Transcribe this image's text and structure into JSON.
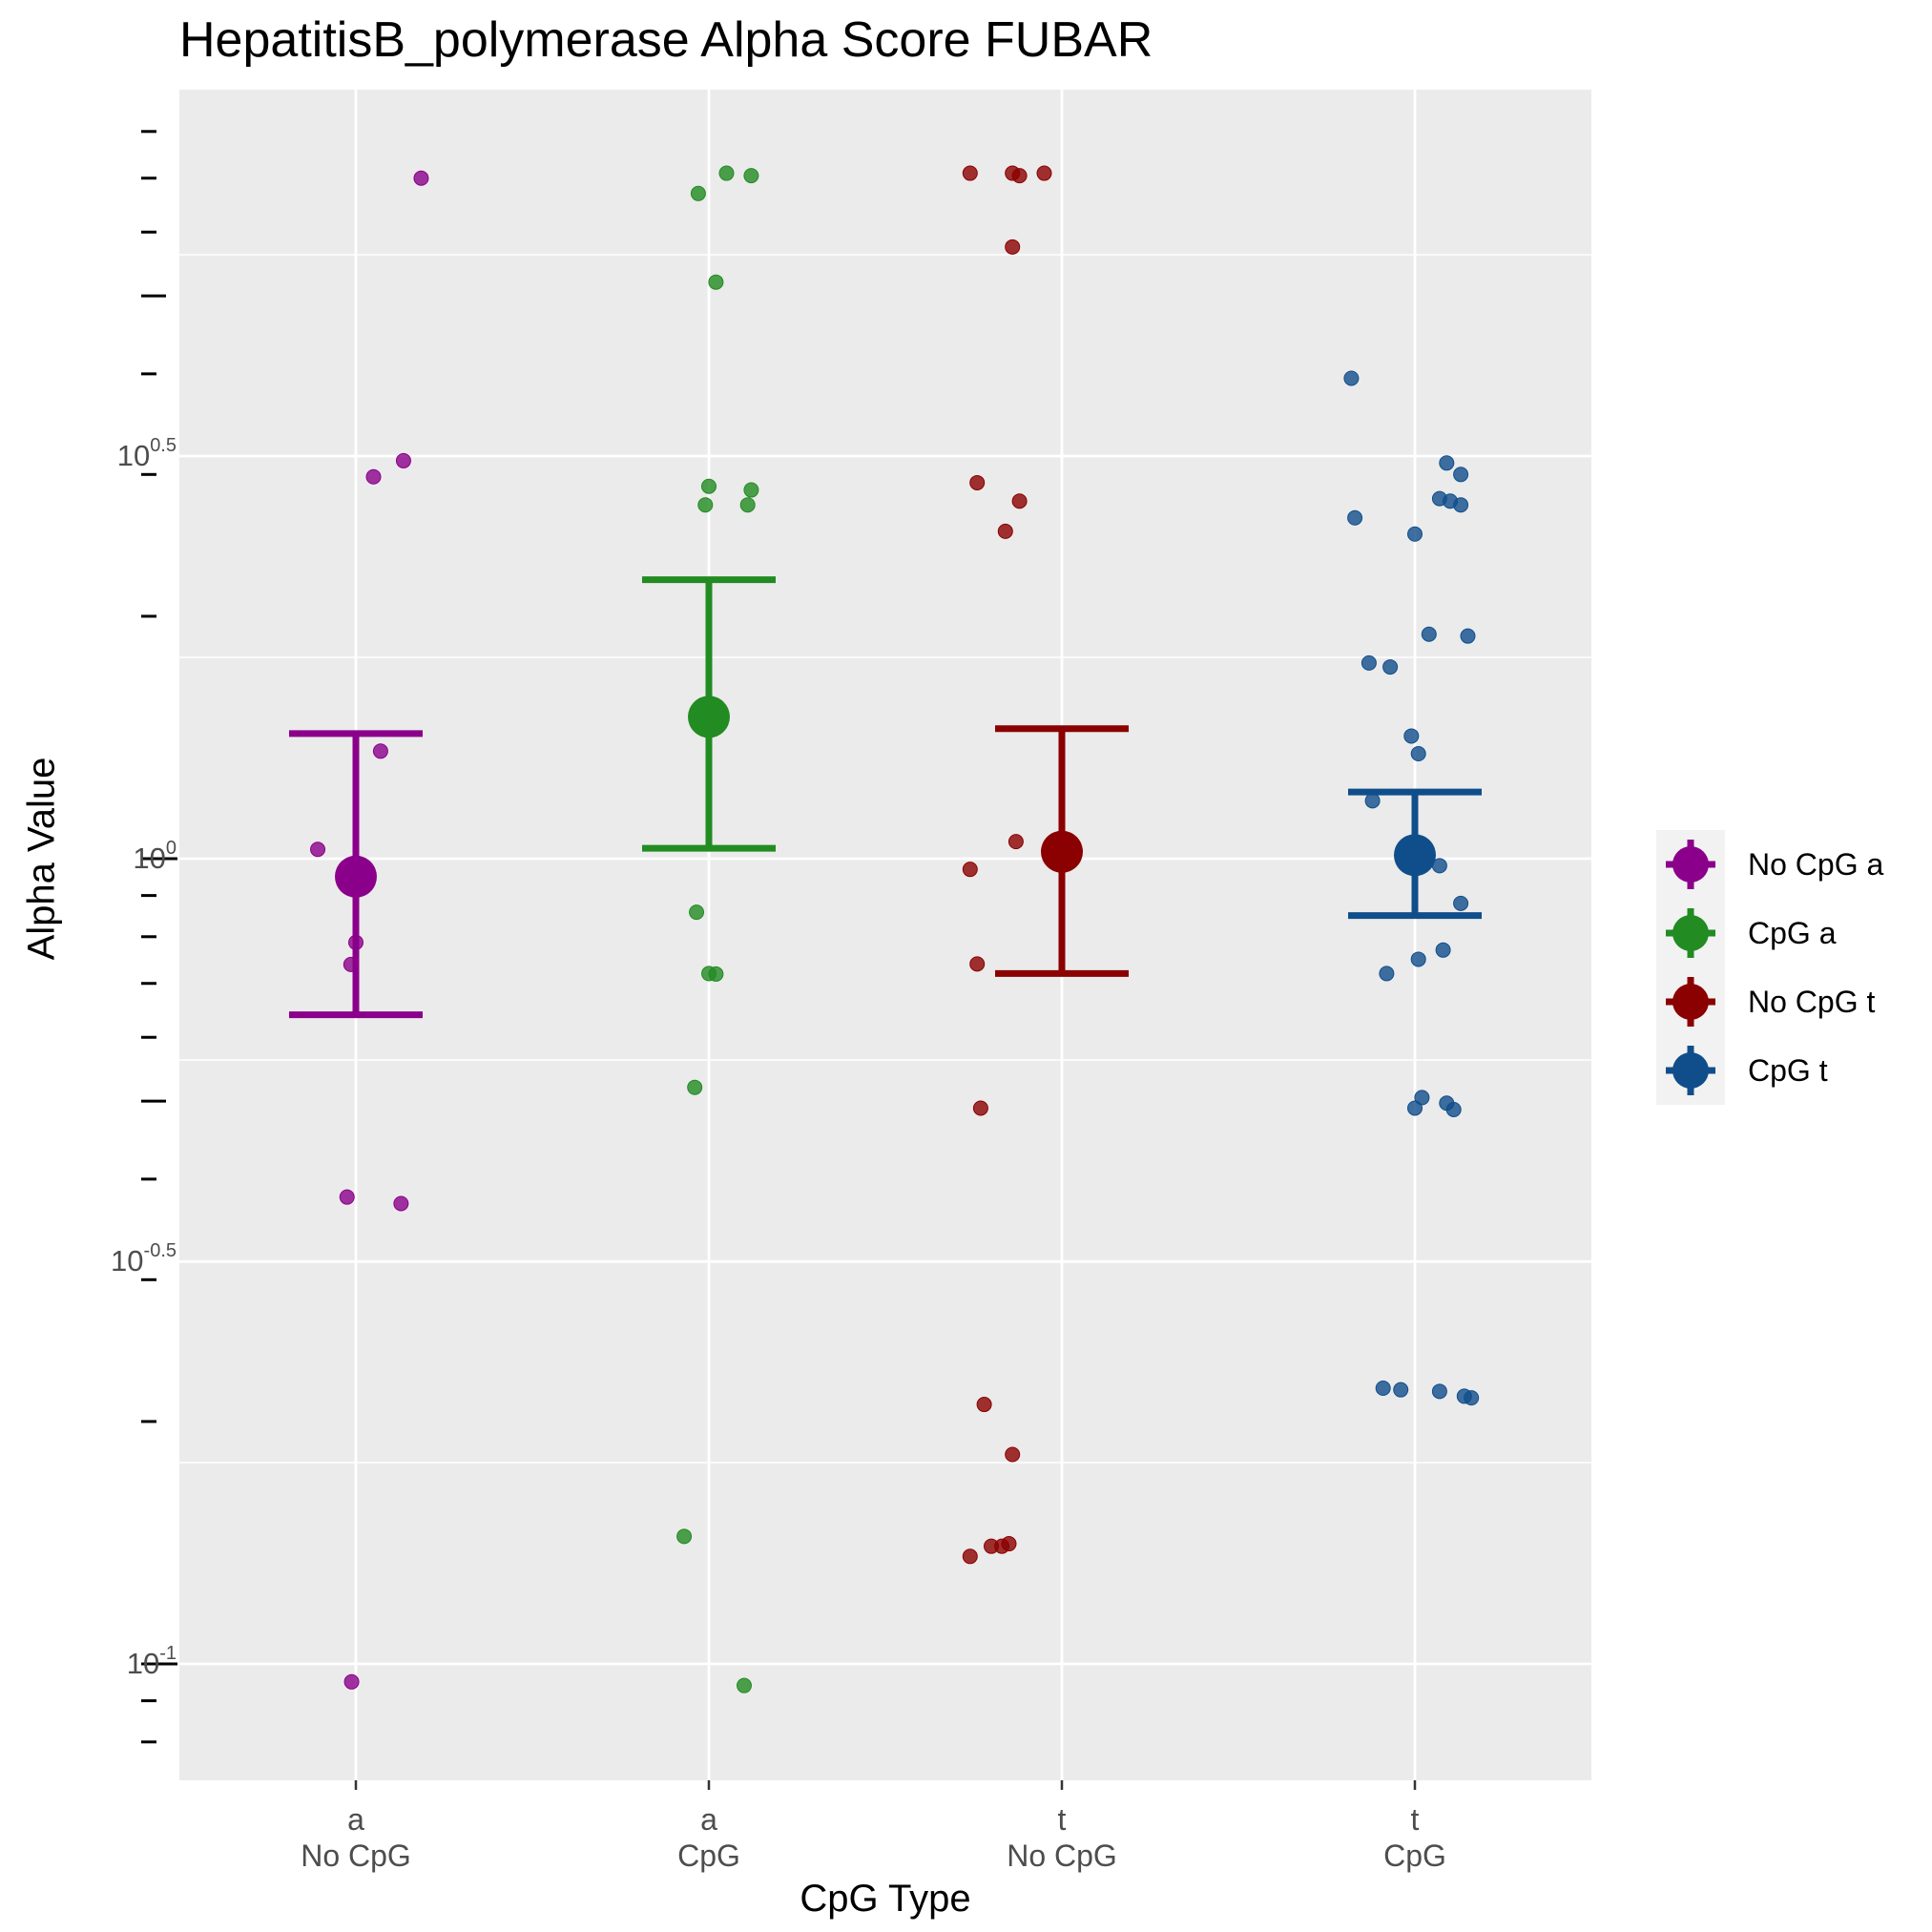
{
  "chart_data": {
    "type": "scatter",
    "title": "HepatitisB_polymerase Alpha Score FUBAR",
    "xlabel": "CpG Type",
    "ylabel": "Alpha Value",
    "y_scale": "log10",
    "ylim": [
      0.07,
      8.5
    ],
    "y_ticks": [
      {
        "value": 0.1,
        "base": "10",
        "exp": "-1"
      },
      {
        "value": 0.316,
        "base": "10",
        "exp": "-0.5"
      },
      {
        "value": 1.0,
        "base": "10",
        "exp": "0"
      },
      {
        "value": 3.162,
        "base": "10",
        "exp": "0.5"
      }
    ],
    "categories": [
      {
        "top": "a",
        "bottom": "No CpG"
      },
      {
        "top": "a",
        "bottom": "CpG"
      },
      {
        "top": "t",
        "bottom": "No CpG"
      },
      {
        "top": "t",
        "bottom": "CpG"
      }
    ],
    "grid": true,
    "legend_position": "right",
    "series": [
      {
        "name": "No CpG a",
        "color": "#8B008B",
        "mean": 0.95,
        "ci": [
          0.64,
          1.43
        ],
        "points": [
          {
            "x": 0.988,
            "y": 0.095
          },
          {
            "x": 0.975,
            "y": 0.38
          },
          {
            "x": 1.128,
            "y": 0.373
          },
          {
            "x": 0.986,
            "y": 0.739
          },
          {
            "x": 1.0,
            "y": 0.787
          },
          {
            "x": 0.892,
            "y": 1.027
          },
          {
            "x": 1.07,
            "y": 1.36
          },
          {
            "x": 1.05,
            "y": 2.98
          },
          {
            "x": 1.135,
            "y": 3.12
          },
          {
            "x": 1.185,
            "y": 7.0
          }
        ]
      },
      {
        "name": "CpG a",
        "color": "#228B22",
        "mean": 1.5,
        "ci": [
          1.03,
          2.22
        ],
        "points": [
          {
            "x": 1.93,
            "y": 0.144
          },
          {
            "x": 2.1,
            "y": 0.094
          },
          {
            "x": 1.96,
            "y": 0.52
          },
          {
            "x": 2.0,
            "y": 0.72
          },
          {
            "x": 2.02,
            "y": 0.719
          },
          {
            "x": 1.965,
            "y": 0.858
          },
          {
            "x": 1.99,
            "y": 2.75
          },
          {
            "x": 2.0,
            "y": 2.9
          },
          {
            "x": 2.11,
            "y": 2.75
          },
          {
            "x": 2.12,
            "y": 2.87
          },
          {
            "x": 1.97,
            "y": 6.7
          },
          {
            "x": 2.05,
            "y": 7.1
          },
          {
            "x": 2.12,
            "y": 7.05
          },
          {
            "x": 2.02,
            "y": 5.2
          }
        ]
      },
      {
        "name": "No CpG t",
        "color": "#8B0000",
        "mean": 1.02,
        "ci": [
          0.72,
          1.45
        ],
        "points": [
          {
            "x": 2.74,
            "y": 7.1
          },
          {
            "x": 2.86,
            "y": 7.1
          },
          {
            "x": 2.88,
            "y": 7.05
          },
          {
            "x": 2.95,
            "y": 7.1
          },
          {
            "x": 2.86,
            "y": 5.75
          },
          {
            "x": 2.76,
            "y": 2.93
          },
          {
            "x": 2.88,
            "y": 2.78
          },
          {
            "x": 2.84,
            "y": 2.55
          },
          {
            "x": 2.87,
            "y": 1.05
          },
          {
            "x": 2.74,
            "y": 0.97
          },
          {
            "x": 2.76,
            "y": 0.74
          },
          {
            "x": 2.77,
            "y": 0.49
          },
          {
            "x": 2.78,
            "y": 0.21
          },
          {
            "x": 2.86,
            "y": 0.182
          },
          {
            "x": 2.74,
            "y": 0.136
          },
          {
            "x": 2.8,
            "y": 0.14
          },
          {
            "x": 2.83,
            "y": 0.14
          },
          {
            "x": 2.85,
            "y": 0.141
          }
        ]
      },
      {
        "name": "CpG t",
        "color": "#104E8B",
        "mean": 1.01,
        "ci": [
          0.85,
          1.21
        ],
        "points": [
          {
            "x": 3.82,
            "y": 3.95
          },
          {
            "x": 3.83,
            "y": 2.65
          },
          {
            "x": 4.0,
            "y": 2.53
          },
          {
            "x": 4.09,
            "y": 3.1
          },
          {
            "x": 4.13,
            "y": 3.0
          },
          {
            "x": 4.07,
            "y": 2.8
          },
          {
            "x": 4.1,
            "y": 2.78
          },
          {
            "x": 4.13,
            "y": 2.75
          },
          {
            "x": 4.04,
            "y": 1.9
          },
          {
            "x": 4.15,
            "y": 1.89
          },
          {
            "x": 3.87,
            "y": 1.75
          },
          {
            "x": 3.93,
            "y": 1.73
          },
          {
            "x": 3.99,
            "y": 1.42
          },
          {
            "x": 4.01,
            "y": 1.35
          },
          {
            "x": 3.88,
            "y": 1.18
          },
          {
            "x": 4.07,
            "y": 0.98
          },
          {
            "x": 4.13,
            "y": 0.88
          },
          {
            "x": 3.92,
            "y": 0.72
          },
          {
            "x": 4.01,
            "y": 0.75
          },
          {
            "x": 4.08,
            "y": 0.77
          },
          {
            "x": 4.02,
            "y": 0.505
          },
          {
            "x": 4.0,
            "y": 0.49
          },
          {
            "x": 4.09,
            "y": 0.497
          },
          {
            "x": 4.11,
            "y": 0.488
          },
          {
            "x": 3.91,
            "y": 0.22
          },
          {
            "x": 3.96,
            "y": 0.219
          },
          {
            "x": 4.07,
            "y": 0.218
          },
          {
            "x": 4.14,
            "y": 0.215
          },
          {
            "x": 4.16,
            "y": 0.214
          }
        ]
      }
    ]
  }
}
